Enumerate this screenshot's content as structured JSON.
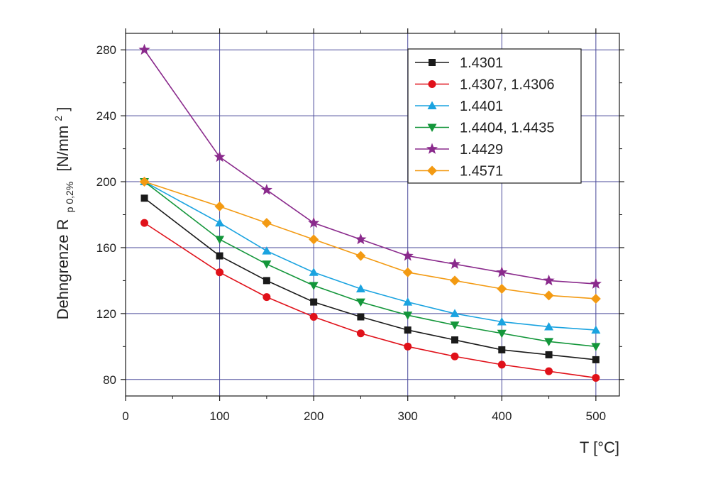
{
  "chart_data": {
    "type": "line",
    "xlabel": "T [°C]",
    "ylabel_parts": [
      "Dehngrenze R",
      "p 0,2%",
      "[N/mm",
      "2",
      "]"
    ],
    "xlim": [
      0,
      525
    ],
    "ylim": [
      70,
      290
    ],
    "xticks": [
      0,
      100,
      200,
      300,
      400,
      500
    ],
    "yticks": [
      80,
      120,
      160,
      200,
      240,
      280
    ],
    "grid": true,
    "legend_position": "top-right",
    "series": [
      {
        "name": "1.4301",
        "color": "#1a1a1a",
        "marker": "square",
        "x": [
          20,
          100,
          150,
          200,
          250,
          300,
          350,
          400,
          450,
          500
        ],
        "y": [
          190,
          155,
          140,
          127,
          118,
          110,
          104,
          98,
          95,
          92
        ]
      },
      {
        "name": "1.4307, 1.4306",
        "color": "#e0111a",
        "marker": "circle",
        "x": [
          20,
          100,
          150,
          200,
          250,
          300,
          350,
          400,
          450,
          500
        ],
        "y": [
          175,
          145,
          130,
          118,
          108,
          100,
          94,
          89,
          85,
          81
        ]
      },
      {
        "name": "1.4401",
        "color": "#1aa3e0",
        "marker": "triangle-up",
        "x": [
          20,
          100,
          150,
          200,
          250,
          300,
          350,
          400,
          450,
          500
        ],
        "y": [
          200,
          175,
          158,
          145,
          135,
          127,
          120,
          115,
          112,
          110
        ]
      },
      {
        "name": "1.4404, 1.4435",
        "color": "#13963a",
        "marker": "triangle-down",
        "x": [
          20,
          100,
          150,
          200,
          250,
          300,
          350,
          400,
          450,
          500
        ],
        "y": [
          200,
          165,
          150,
          137,
          127,
          119,
          113,
          108,
          103,
          100
        ]
      },
      {
        "name": "1.4429",
        "color": "#8a2a8c",
        "marker": "star",
        "x": [
          20,
          100,
          150,
          200,
          250,
          300,
          350,
          400,
          450,
          500
        ],
        "y": [
          280,
          215,
          195,
          175,
          165,
          155,
          150,
          145,
          140,
          138
        ]
      },
      {
        "name": "1.4571",
        "color": "#f39a12",
        "marker": "diamond",
        "x": [
          20,
          100,
          150,
          200,
          250,
          300,
          350,
          400,
          450,
          500
        ],
        "y": [
          200,
          185,
          175,
          165,
          155,
          145,
          140,
          135,
          131,
          129
        ]
      }
    ]
  }
}
